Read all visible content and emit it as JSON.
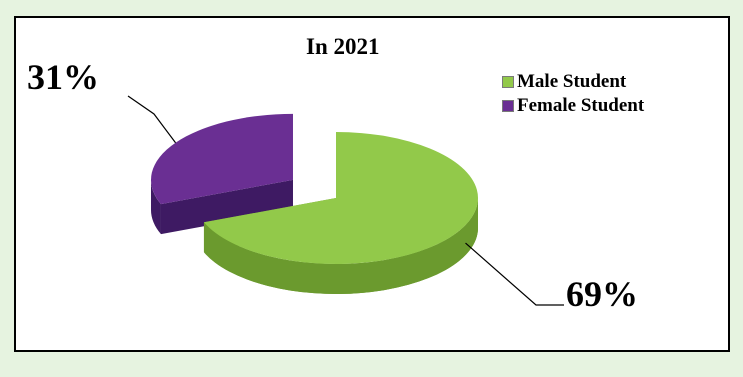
{
  "chart_data": {
    "type": "pie",
    "title": "In 2021",
    "categories": [
      "Male Student",
      "Female Student"
    ],
    "values": [
      69,
      31
    ],
    "labels": [
      "69%",
      "31%"
    ],
    "colors": [
      "#92c94a",
      "#6a2f93"
    ],
    "dark_colors": [
      "#6b9a2e",
      "#3e1a63"
    ],
    "legend_position": "top-right",
    "exploded": "Female Student",
    "style": "3d"
  }
}
